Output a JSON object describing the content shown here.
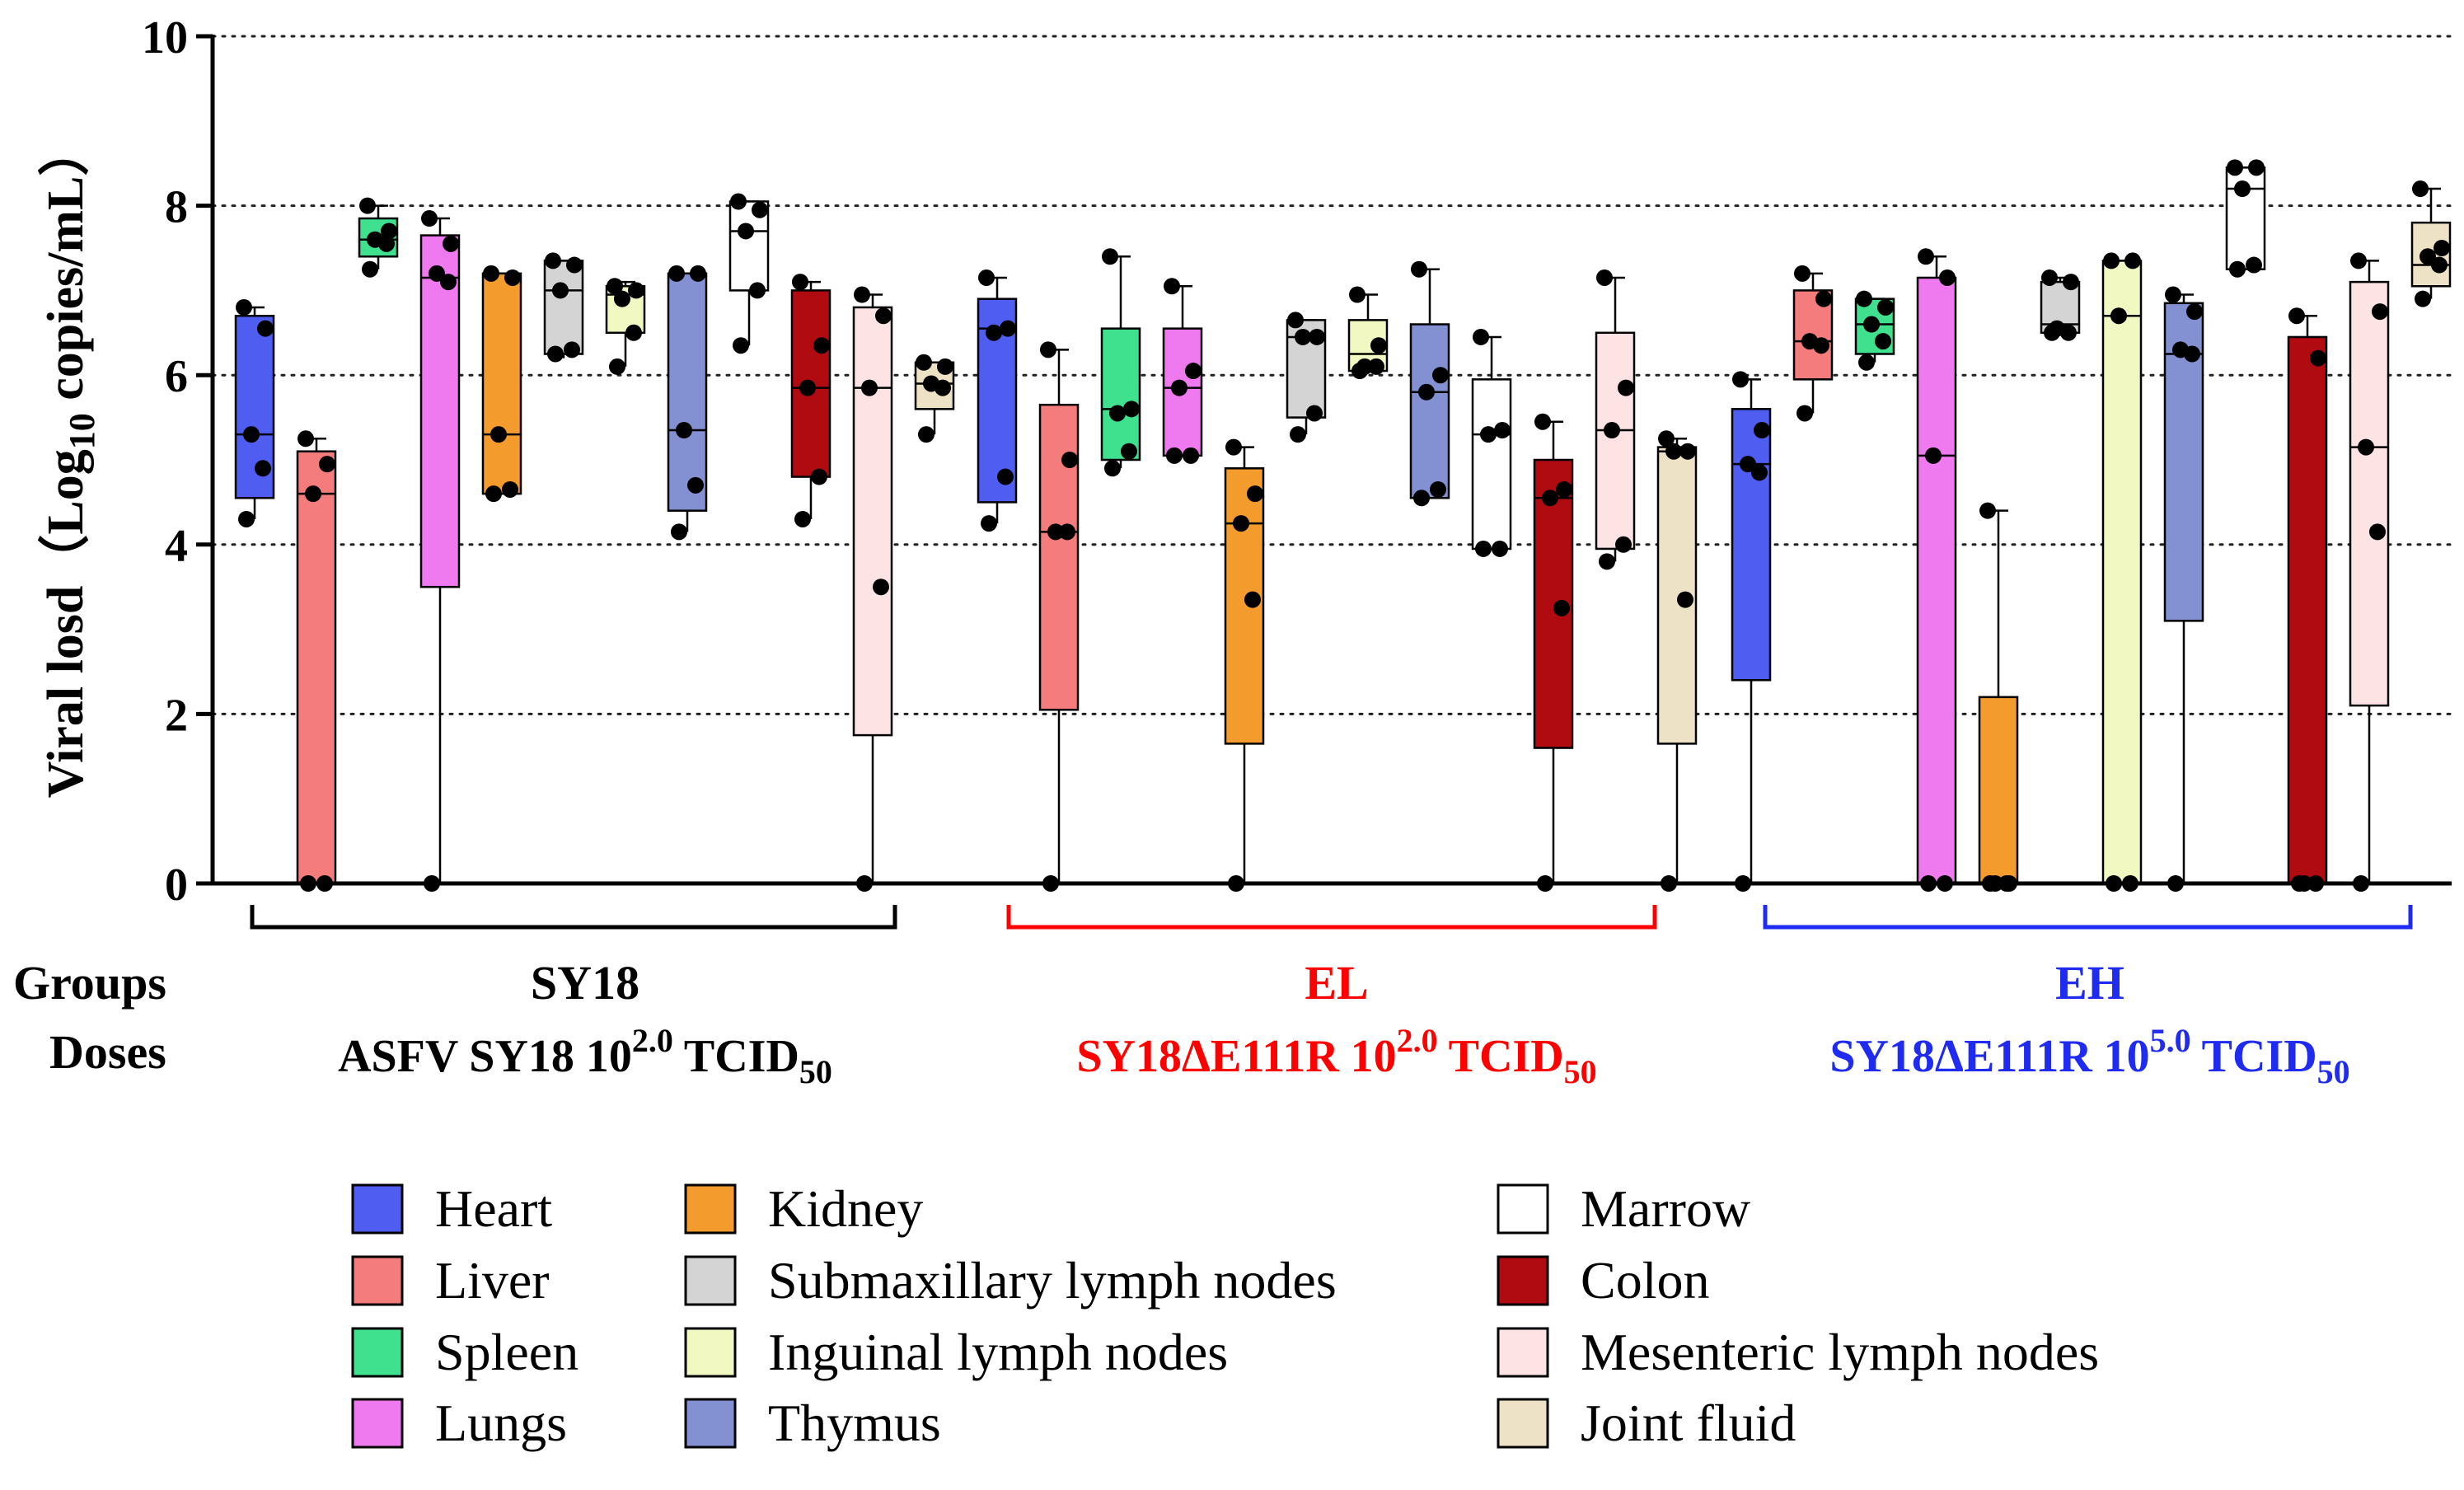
{
  "chart_data": {
    "type": "box",
    "title": "",
    "ylabel_prefix": "Viral losd（Log",
    "ylabel_sub": "10",
    "ylabel_suffix": " copies/mL）",
    "ylim": [
      0,
      10
    ],
    "yticks": [
      "0",
      "2",
      "4",
      "6",
      "8",
      "10"
    ],
    "grid": "dotted horizontal",
    "row_labels": {
      "groups": "Groups",
      "doses": "Doses"
    },
    "tissues": [
      {
        "name": "Heart",
        "color": "#4f5ef0"
      },
      {
        "name": "Liver",
        "color": "#f47c7c"
      },
      {
        "name": "Spleen",
        "color": "#3fe08e"
      },
      {
        "name": "Lungs",
        "color": "#ef7aef"
      },
      {
        "name": "Kidney",
        "color": "#f39b2d"
      },
      {
        "name": "Submaxillary lymph nodes",
        "color": "#d4d4d4"
      },
      {
        "name": "Inguinal lymph nodes",
        "color": "#f1f8c2"
      },
      {
        "name": "Thymus",
        "color": "#8391d3"
      },
      {
        "name": "Marrow",
        "color": "#ffffff"
      },
      {
        "name": "Colon",
        "color": "#b10b12"
      },
      {
        "name": "Mesenteric lymph nodes",
        "color": "#fde3e3"
      },
      {
        "name": "Joint fluid",
        "color": "#eee2c6"
      }
    ],
    "groups": [
      {
        "name": "SY18",
        "color": "#000000",
        "dose_pre": "ASFV SY18 10",
        "dose_sup": "2.0",
        "dose_mid": " TCID",
        "dose_sub": "50",
        "boxes": [
          {
            "min": 4.3,
            "q1": 4.55,
            "median": 5.3,
            "q3": 6.7,
            "max": 6.8,
            "points": [
              6.8,
              6.55,
              5.3,
              4.9,
              4.3
            ]
          },
          {
            "min": 0,
            "q1": 0,
            "median": 4.6,
            "q3": 5.1,
            "max": 5.25,
            "points": [
              5.25,
              4.95,
              4.6,
              0,
              0
            ]
          },
          {
            "min": 7.25,
            "q1": 7.4,
            "median": 7.6,
            "q3": 7.85,
            "max": 8.0,
            "points": [
              8.0,
              7.7,
              7.6,
              7.55,
              7.25
            ]
          },
          {
            "min": 0,
            "q1": 3.5,
            "median": 7.15,
            "q3": 7.65,
            "max": 7.85,
            "points": [
              7.85,
              7.55,
              7.2,
              7.1,
              0
            ]
          },
          {
            "min": 4.6,
            "q1": 4.6,
            "median": 5.3,
            "q3": 7.2,
            "max": 7.2,
            "points": [
              7.2,
              7.15,
              5.3,
              4.65,
              4.6
            ]
          },
          {
            "min": 6.2,
            "q1": 6.25,
            "median": 7.0,
            "q3": 7.35,
            "max": 7.35,
            "points": [
              7.35,
              7.3,
              7.0,
              6.3,
              6.25
            ]
          },
          {
            "min": 6.1,
            "q1": 6.5,
            "median": 6.95,
            "q3": 7.05,
            "max": 7.1,
            "points": [
              7.05,
              7.0,
              6.9,
              6.5,
              6.1
            ]
          },
          {
            "min": 4.15,
            "q1": 4.4,
            "median": 5.35,
            "q3": 7.2,
            "max": 7.2,
            "points": [
              7.2,
              7.2,
              5.35,
              4.7,
              4.15
            ]
          },
          {
            "min": 6.35,
            "q1": 7.0,
            "median": 7.7,
            "q3": 8.05,
            "max": 8.05,
            "points": [
              8.05,
              7.95,
              7.7,
              7.0,
              6.35
            ]
          },
          {
            "min": 4.3,
            "q1": 4.8,
            "median": 5.85,
            "q3": 7.0,
            "max": 7.1,
            "points": [
              7.1,
              6.35,
              5.85,
              4.8,
              4.3
            ]
          },
          {
            "min": 0,
            "q1": 1.75,
            "median": 5.85,
            "q3": 6.8,
            "max": 6.95,
            "points": [
              6.95,
              6.7,
              5.85,
              3.5,
              0
            ]
          },
          {
            "min": 5.3,
            "q1": 5.6,
            "median": 5.9,
            "q3": 6.15,
            "max": 6.15,
            "points": [
              6.15,
              6.1,
              5.9,
              5.85,
              5.3
            ]
          }
        ]
      },
      {
        "name": "EL",
        "color": "#ff0000",
        "dose_pre": "SY18ΔE111R 10",
        "dose_sup": "2.0",
        "dose_mid": " TCID",
        "dose_sub": "50",
        "boxes": [
          {
            "min": 4.25,
            "q1": 4.5,
            "median": 6.55,
            "q3": 6.9,
            "max": 7.15,
            "points": [
              7.15,
              6.55,
              6.5,
              4.8,
              4.25
            ]
          },
          {
            "min": 0,
            "q1": 2.05,
            "median": 4.15,
            "q3": 5.65,
            "max": 6.3,
            "points": [
              6.3,
              5.0,
              4.15,
              4.15,
              0
            ]
          },
          {
            "min": 4.9,
            "q1": 5.0,
            "median": 5.6,
            "q3": 6.55,
            "max": 7.4,
            "points": [
              7.4,
              5.6,
              5.55,
              5.1,
              4.9
            ]
          },
          {
            "min": 5.05,
            "q1": 5.05,
            "median": 5.85,
            "q3": 6.55,
            "max": 7.05,
            "points": [
              7.05,
              6.05,
              5.85,
              5.05,
              5.05
            ]
          },
          {
            "min": 0,
            "q1": 1.65,
            "median": 4.25,
            "q3": 4.9,
            "max": 5.15,
            "points": [
              5.15,
              4.6,
              4.25,
              3.35,
              0
            ]
          },
          {
            "min": 5.3,
            "q1": 5.5,
            "median": 6.45,
            "q3": 6.65,
            "max": 6.65,
            "points": [
              6.65,
              6.45,
              6.45,
              5.55,
              5.3
            ]
          },
          {
            "min": 6.05,
            "q1": 6.05,
            "median": 6.25,
            "q3": 6.65,
            "max": 6.95,
            "points": [
              6.95,
              6.35,
              6.1,
              6.1,
              6.05
            ]
          },
          {
            "min": 4.55,
            "q1": 4.55,
            "median": 5.8,
            "q3": 6.6,
            "max": 7.25,
            "points": [
              7.25,
              6.0,
              5.8,
              4.65,
              4.55
            ]
          },
          {
            "min": 3.95,
            "q1": 3.95,
            "median": 5.3,
            "q3": 5.95,
            "max": 6.45,
            "points": [
              6.45,
              5.35,
              5.3,
              3.95,
              3.95
            ]
          },
          {
            "min": 0,
            "q1": 1.6,
            "median": 4.55,
            "q3": 5.0,
            "max": 5.45,
            "points": [
              5.45,
              4.65,
              4.55,
              3.25,
              0
            ]
          },
          {
            "min": 3.8,
            "q1": 3.95,
            "median": 5.35,
            "q3": 6.5,
            "max": 7.15,
            "points": [
              7.15,
              5.85,
              5.35,
              4.0,
              3.8
            ]
          },
          {
            "min": 0,
            "q1": 1.65,
            "median": 5.1,
            "q3": 5.15,
            "max": 5.25,
            "points": [
              5.25,
              5.1,
              5.1,
              3.35,
              0
            ]
          }
        ]
      },
      {
        "name": "EH",
        "color": "#1f2bf0",
        "dose_pre": "SY18ΔE111R 10",
        "dose_sup": "5.0",
        "dose_mid": " TCID",
        "dose_sub": "50",
        "boxes": [
          {
            "min": 0,
            "q1": 2.4,
            "median": 4.95,
            "q3": 5.6,
            "max": 5.95,
            "points": [
              5.95,
              5.35,
              4.95,
              4.85,
              0
            ]
          },
          {
            "min": 5.55,
            "q1": 5.95,
            "median": 6.4,
            "q3": 7.0,
            "max": 7.2,
            "points": [
              7.2,
              6.9,
              6.4,
              6.35,
              5.55
            ]
          },
          {
            "min": 6.15,
            "q1": 6.25,
            "median": 6.6,
            "q3": 6.9,
            "max": 6.9,
            "points": [
              6.9,
              6.8,
              6.6,
              6.4,
              6.15
            ]
          },
          {
            "min": 0,
            "q1": 0,
            "median": 5.05,
            "q3": 7.15,
            "max": 7.4,
            "points": [
              7.4,
              7.15,
              5.05,
              0,
              0
            ]
          },
          {
            "min": 0,
            "q1": 0,
            "median": 0,
            "q3": 2.2,
            "max": 4.4,
            "points": [
              4.4,
              0,
              0,
              0,
              0
            ]
          },
          {
            "min": 6.5,
            "q1": 6.5,
            "median": 6.6,
            "q3": 7.1,
            "max": 7.15,
            "points": [
              7.15,
              7.1,
              6.55,
              6.5,
              6.5
            ]
          },
          {
            "min": 0,
            "q1": 0,
            "median": 6.7,
            "q3": 7.35,
            "max": 7.35,
            "points": [
              7.35,
              7.35,
              6.7,
              0,
              0
            ]
          },
          {
            "min": 0,
            "q1": 3.1,
            "median": 6.25,
            "q3": 6.85,
            "max": 6.95,
            "points": [
              6.95,
              6.75,
              6.3,
              6.25,
              0
            ]
          },
          {
            "min": 7.25,
            "q1": 7.25,
            "median": 8.2,
            "q3": 8.45,
            "max": 8.45,
            "points": [
              8.45,
              8.45,
              8.2,
              7.3,
              7.25
            ]
          },
          {
            "min": 0,
            "q1": 0,
            "median": 0,
            "q3": 6.45,
            "max": 6.7,
            "points": [
              6.7,
              6.2,
              0,
              0,
              0
            ]
          },
          {
            "min": 0,
            "q1": 2.1,
            "median": 5.15,
            "q3": 7.1,
            "max": 7.35,
            "points": [
              7.35,
              6.75,
              5.15,
              4.15,
              0
            ]
          },
          {
            "min": 6.9,
            "q1": 7.05,
            "median": 7.3,
            "q3": 7.8,
            "max": 8.2,
            "points": [
              8.2,
              7.5,
              7.4,
              7.3,
              6.9
            ]
          }
        ]
      }
    ]
  }
}
